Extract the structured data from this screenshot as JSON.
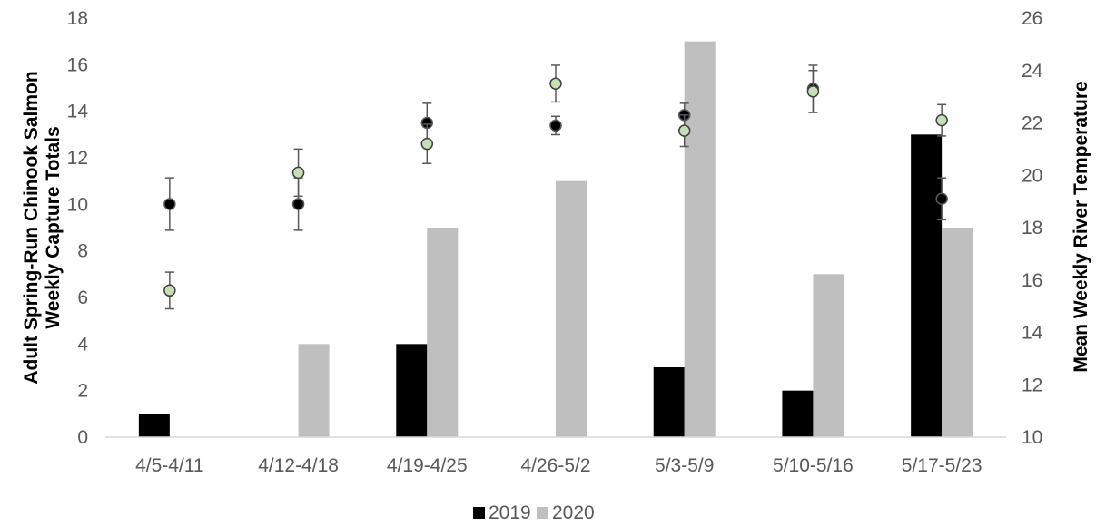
{
  "chart_data": {
    "type": "bar",
    "categories": [
      "4/5-4/11",
      "4/12-4/18",
      "4/19-4/25",
      "4/26-5/2",
      "5/3-5/9",
      "5/10-5/16",
      "5/17-5/23"
    ],
    "series": [
      {
        "name": "2019",
        "values": [
          1,
          0,
          4,
          0,
          3,
          2,
          13
        ],
        "color": "#000000"
      },
      {
        "name": "2020",
        "values": [
          0,
          4,
          9,
          11,
          17,
          7,
          9
        ],
        "color": "#bfbfbf"
      }
    ],
    "temperature_series": [
      {
        "year": "2019",
        "marker_color": "#000000",
        "stroke_color": "#595959",
        "values": [
          18.9,
          18.9,
          22.0,
          21.9,
          22.3,
          23.3,
          19.1
        ],
        "errors": [
          1.0,
          1.0,
          0.75,
          0.35,
          0.45,
          0.9,
          0.8
        ]
      },
      {
        "year": "2020",
        "marker_color": "#c5e0b4",
        "stroke_color": "#404040",
        "values": [
          15.6,
          20.1,
          21.2,
          23.5,
          21.7,
          23.2,
          22.1
        ],
        "errors": [
          0.7,
          0.9,
          0.75,
          0.7,
          0.6,
          0.8,
          0.6
        ]
      }
    ],
    "ylabel_lines": [
      "Adult Spring-Run Chinook Salmon",
      "Weekly Capture Totals"
    ],
    "y2label": "Mean Weekly River Temperature",
    "ylim": [
      0,
      18
    ],
    "yticks": [
      "0",
      "2",
      "4",
      "6",
      "8",
      "10",
      "12",
      "14",
      "16",
      "18"
    ],
    "y2lim": [
      10,
      26
    ],
    "y2ticks": [
      "10",
      "12",
      "14",
      "16",
      "18",
      "20",
      "22",
      "24",
      "26"
    ],
    "legend_position": "bottom-center",
    "grid": false
  }
}
